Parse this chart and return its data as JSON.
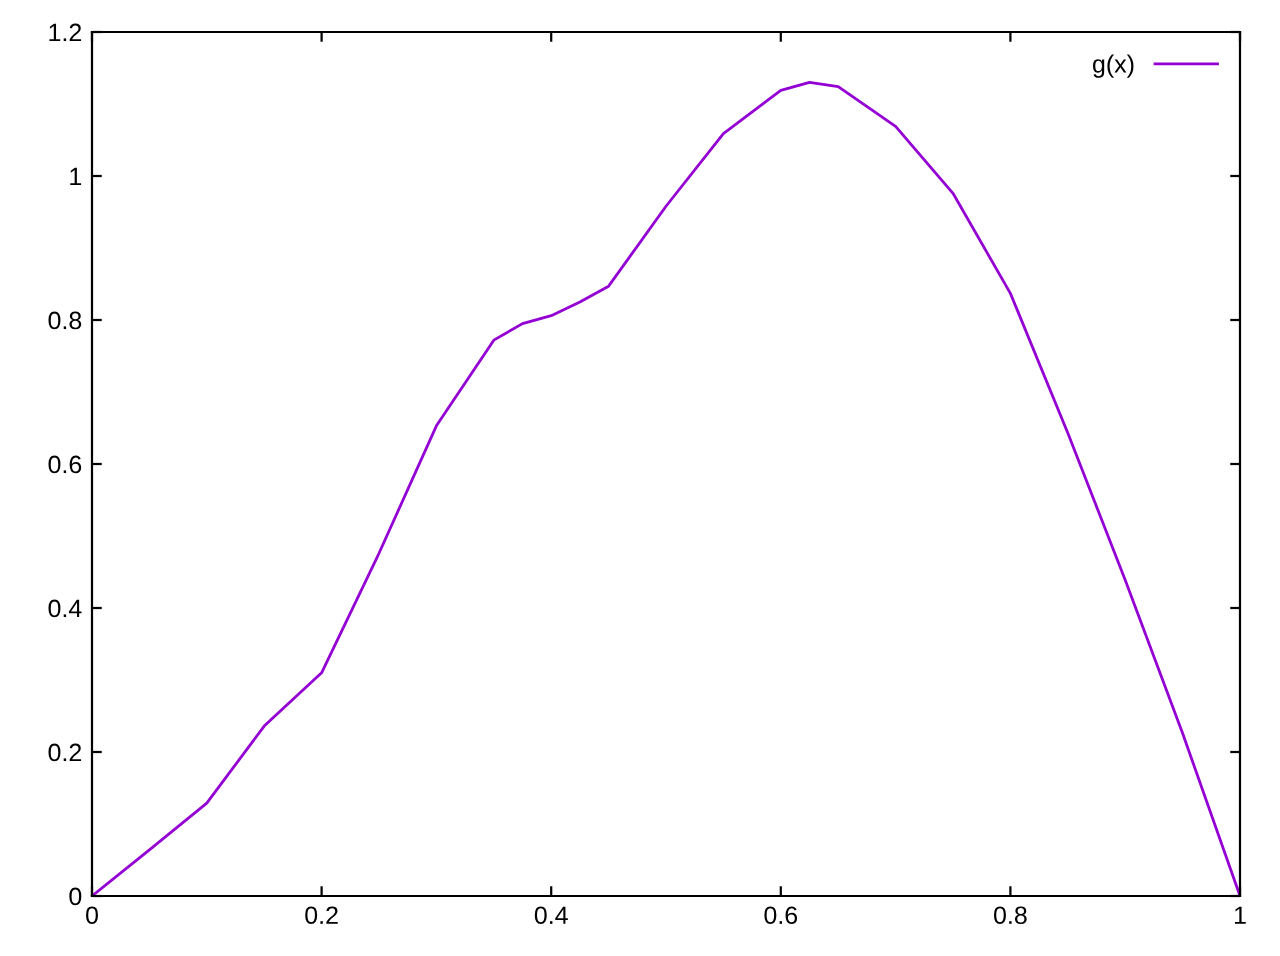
{
  "chart_data": {
    "type": "line",
    "x": [
      0,
      0.05,
      0.1,
      0.15,
      0.2,
      0.25,
      0.3,
      0.35,
      0.375,
      0.4,
      0.425,
      0.45,
      0.5,
      0.55,
      0.6,
      0.625,
      0.65,
      0.7,
      0.75,
      0.8,
      0.85,
      0.9,
      0.95,
      1.0
    ],
    "series": [
      {
        "name": "g(x)",
        "color": "#9400d3",
        "values": [
          0,
          0.064,
          0.129,
          0.236,
          0.31,
          0.476,
          0.653,
          0.772,
          0.795,
          0.806,
          0.825,
          0.847,
          0.958,
          1.059,
          1.119,
          1.13,
          1.124,
          1.069,
          0.976,
          0.837,
          0.643,
          0.439,
          0.226,
          0
        ]
      }
    ],
    "xlim": [
      0,
      1
    ],
    "ylim": [
      0,
      1.2
    ],
    "xticks": [
      0,
      0.2,
      0.4,
      0.6,
      0.8,
      1
    ],
    "yticks": [
      0,
      0.2,
      0.4,
      0.6,
      0.8,
      1,
      1.2
    ],
    "grid": false,
    "legend": "top right",
    "marker": "none",
    "line_style": "solid"
  }
}
